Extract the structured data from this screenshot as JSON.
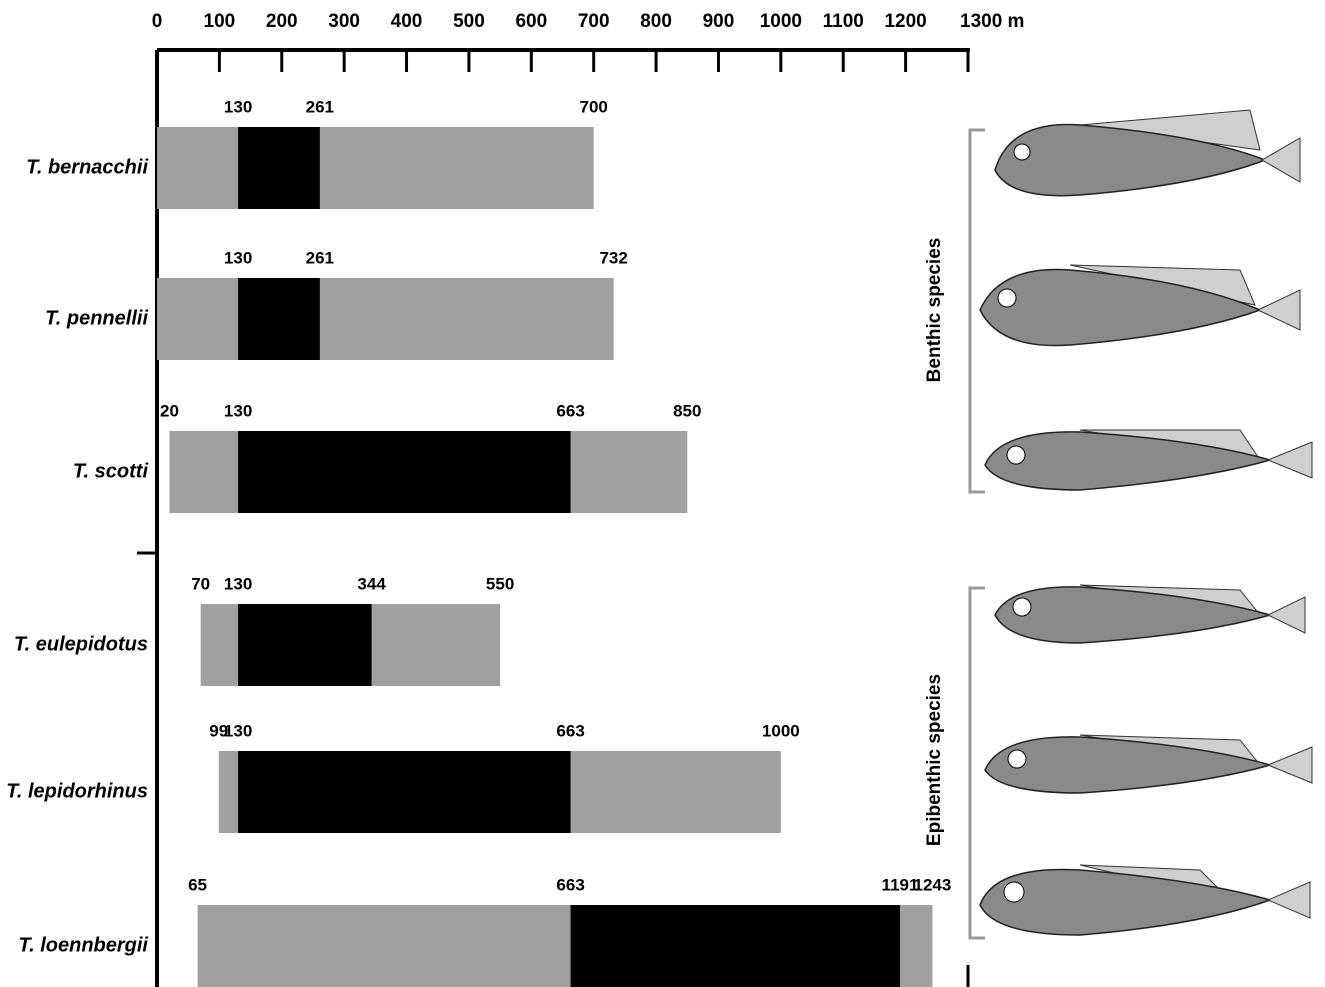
{
  "chart_data": {
    "type": "range_bar",
    "categories": [
      "T. bernacchii",
      "T. pennellii",
      "T. scotti",
      "T. eulepidotus",
      "T. lepidorhinus",
      "T. loennbergii"
    ],
    "series": [
      {
        "color": "#a0a0a0",
        "start": [
          0,
          0,
          20,
          70,
          99,
          65
        ],
        "start_printed": [
          false,
          false,
          true,
          true,
          true,
          true
        ],
        "end": [
          700,
          732,
          850,
          550,
          1000,
          1243
        ]
      },
      {
        "color": "#000000",
        "start": [
          130,
          130,
          130,
          130,
          130,
          663
        ],
        "start_printed": [
          true,
          true,
          true,
          true,
          true,
          true
        ],
        "end": [
          261,
          261,
          663,
          344,
          663,
          1191
        ]
      }
    ],
    "xlim": [
      0,
      1300
    ],
    "xticks": [
      0,
      100,
      200,
      300,
      400,
      500,
      600,
      700,
      800,
      900,
      1000,
      1100,
      1200,
      {
        "value": 1300,
        "label": "1300 m"
      }
    ],
    "annotations": [
      "Benthic species",
      "Epibenthic species"
    ]
  }
}
